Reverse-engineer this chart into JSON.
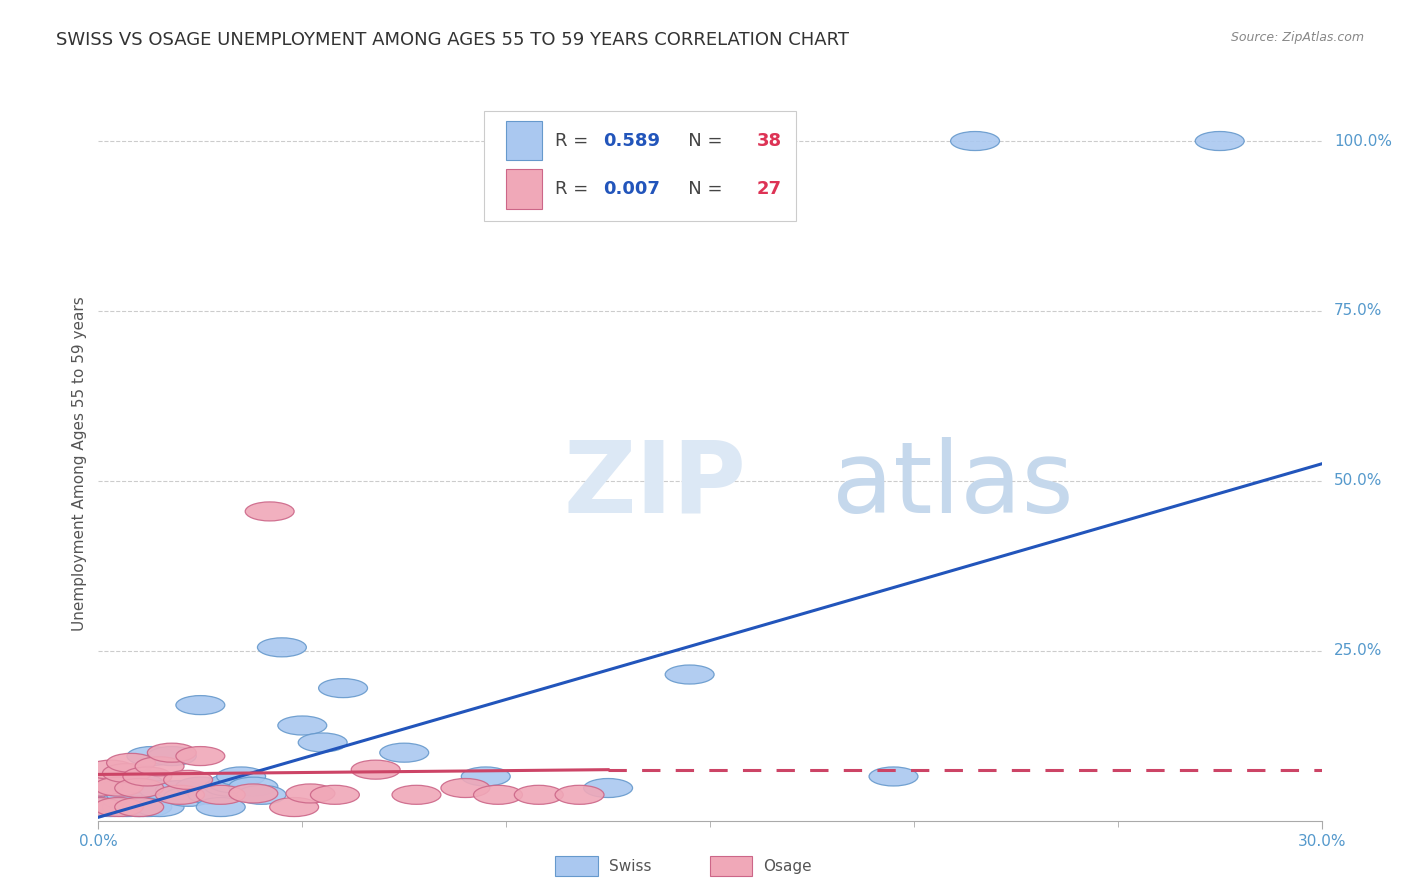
{
  "title": "SWISS VS OSAGE UNEMPLOYMENT AMONG AGES 55 TO 59 YEARS CORRELATION CHART",
  "source": "Source: ZipAtlas.com",
  "ylabel": "Unemployment Among Ages 55 to 59 years",
  "xlim": [
    0.0,
    0.3
  ],
  "ylim": [
    0.0,
    1.05
  ],
  "xticks": [
    0.0,
    0.3
  ],
  "xticklabels": [
    "0.0%",
    "30.0%"
  ],
  "ytick_positions": [
    0.25,
    0.5,
    0.75,
    1.0
  ],
  "ytick_labels": [
    "25.0%",
    "50.0%",
    "75.0%",
    "100.0%"
  ],
  "swiss_color": "#aac8f0",
  "swiss_edge_color": "#6699cc",
  "osage_color": "#f0a8b8",
  "osage_edge_color": "#cc6688",
  "swiss_line_color": "#2255bb",
  "osage_line_color": "#cc4466",
  "swiss_R": "0.589",
  "swiss_N": "38",
  "osage_R": "0.007",
  "osage_N": "27",
  "legend_val_color": "#2255bb",
  "legend_n_color": "#dd3355",
  "watermark_zip_color": "#dce8f5",
  "watermark_atlas_color": "#c5d8ec",
  "swiss_points_x": [
    0.0,
    0.0,
    0.003,
    0.005,
    0.005,
    0.007,
    0.007,
    0.008,
    0.009,
    0.01,
    0.01,
    0.012,
    0.013,
    0.015,
    0.016,
    0.018,
    0.02,
    0.022,
    0.025,
    0.025,
    0.028,
    0.03,
    0.032,
    0.033,
    0.035,
    0.038,
    0.04,
    0.045,
    0.05,
    0.055,
    0.06,
    0.075,
    0.095,
    0.125,
    0.145,
    0.195,
    0.215,
    0.275
  ],
  "swiss_points_y": [
    0.02,
    0.035,
    0.02,
    0.025,
    0.045,
    0.02,
    0.03,
    0.038,
    0.05,
    0.02,
    0.055,
    0.02,
    0.095,
    0.02,
    0.045,
    0.095,
    0.045,
    0.035,
    0.05,
    0.17,
    0.038,
    0.02,
    0.05,
    0.055,
    0.065,
    0.05,
    0.038,
    0.255,
    0.14,
    0.115,
    0.195,
    0.1,
    0.065,
    0.048,
    0.215,
    0.065,
    1.0,
    1.0
  ],
  "osage_points_x": [
    0.0,
    0.0,
    0.003,
    0.005,
    0.005,
    0.007,
    0.008,
    0.01,
    0.01,
    0.012,
    0.015,
    0.018,
    0.02,
    0.022,
    0.025,
    0.03,
    0.038,
    0.042,
    0.048,
    0.052,
    0.058,
    0.068,
    0.078,
    0.09,
    0.098,
    0.108,
    0.118
  ],
  "osage_points_y": [
    0.02,
    0.05,
    0.075,
    0.02,
    0.05,
    0.07,
    0.085,
    0.02,
    0.048,
    0.065,
    0.08,
    0.1,
    0.038,
    0.06,
    0.095,
    0.038,
    0.04,
    0.455,
    0.02,
    0.04,
    0.038,
    0.075,
    0.038,
    0.048,
    0.038,
    0.038,
    0.038
  ],
  "swiss_line": [
    0.0,
    0.3,
    0.005,
    0.525
  ],
  "osage_solid_line": [
    0.0,
    0.125,
    0.068,
    0.075
  ],
  "osage_dash_line": [
    0.125,
    0.3,
    0.075,
    0.075
  ],
  "grid_color": "#cccccc",
  "bg_color": "#ffffff",
  "title_fontsize": 13,
  "label_fontsize": 11,
  "tick_fontsize": 11,
  "right_tick_color": "#5599cc",
  "axis_tick_color": "#5599cc"
}
